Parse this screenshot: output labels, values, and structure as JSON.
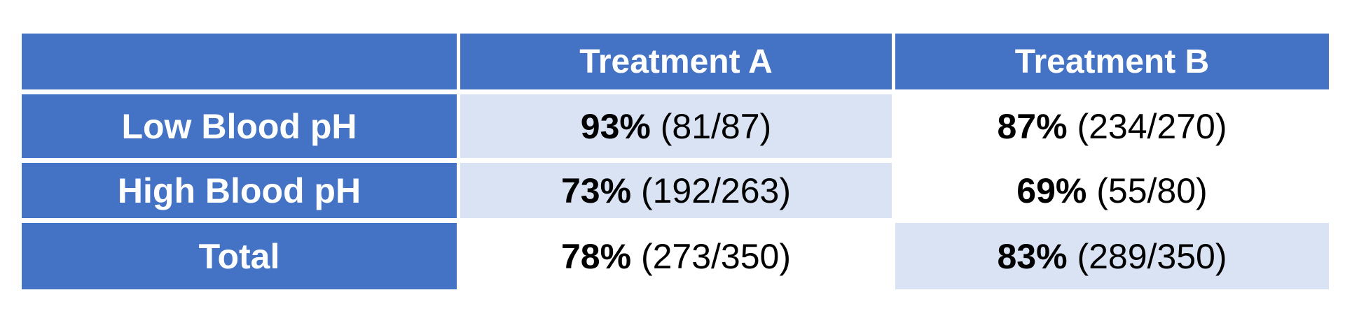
{
  "page": {
    "background": "#FFFFFF"
  },
  "colors": {
    "header-blue": "#4472C4",
    "highlight-blue": "#DAE3F3",
    "header-text": "#FFFFFF",
    "data-text": "#000000",
    "plain-bg": "#FFFFFF"
  },
  "table": {
    "corner_label": "",
    "column_headers": [
      "Treatment A",
      "Treatment B"
    ],
    "rows": [
      {
        "label": "Low Blood pH",
        "cells": [
          {
            "pct": "93%",
            "frac": "(81/87)",
            "highlighted": true
          },
          {
            "pct": "87%",
            "frac": "(234/270)",
            "highlighted": false
          }
        ]
      },
      {
        "label": "High Blood pH",
        "cells": [
          {
            "pct": "73%",
            "frac": "(192/263)",
            "highlighted": true
          },
          {
            "pct": "69%",
            "frac": "(55/80)",
            "highlighted": false
          }
        ]
      },
      {
        "label": "Total",
        "cells": [
          {
            "pct": "78%",
            "frac": "(273/350)",
            "highlighted": false
          },
          {
            "pct": "83%",
            "frac": "(289/350)",
            "highlighted": true
          }
        ]
      }
    ]
  },
  "chart_data": {
    "type": "table",
    "title": "",
    "columns": [
      "",
      "Treatment A",
      "Treatment B"
    ],
    "rows": [
      [
        "Low Blood pH",
        "93% (81/87)",
        "87% (234/270)"
      ],
      [
        "High Blood pH",
        "73% (192/263)",
        "69% (55/80)"
      ],
      [
        "Total",
        "78% (273/350)",
        "83% (289/350)"
      ]
    ],
    "values": {
      "low_blood_ph": {
        "treatment_a": {
          "percent": 93,
          "successes": 81,
          "n": 87
        },
        "treatment_b": {
          "percent": 87,
          "successes": 234,
          "n": 270
        }
      },
      "high_blood_ph": {
        "treatment_a": {
          "percent": 73,
          "successes": 192,
          "n": 263
        },
        "treatment_b": {
          "percent": 69,
          "successes": 55,
          "n": 80
        }
      },
      "total": {
        "treatment_a": {
          "percent": 78,
          "successes": 273,
          "n": 350
        },
        "treatment_b": {
          "percent": 83,
          "successes": 289,
          "n": 350
        }
      }
    },
    "highlighted_cells": [
      [
        "Low Blood pH",
        "Treatment A"
      ],
      [
        "High Blood pH",
        "Treatment A"
      ],
      [
        "Total",
        "Treatment B"
      ]
    ],
    "layout_hints": {
      "header_fill": "#4472C4",
      "highlight_fill": "#DAE3F3",
      "grid": "white gutters between cells",
      "percent_bold": true
    }
  }
}
